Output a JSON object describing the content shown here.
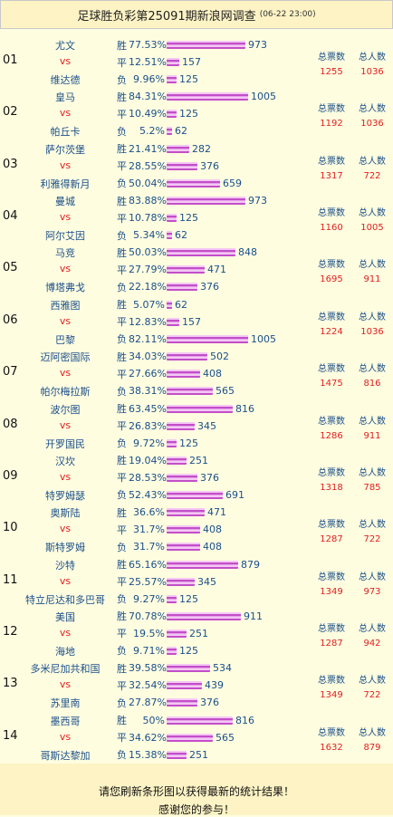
{
  "header": {
    "title": "足球胜负彩第25091期新浪网调查",
    "time": "(06-22 23:00)"
  },
  "labels": {
    "win": "胜",
    "draw": "平",
    "lose": "负",
    "vs": "vs",
    "total_votes": "总票数",
    "total_people": "总人数"
  },
  "matches": [
    {
      "num": "01",
      "home": "尤文",
      "away": "维达德",
      "win_pct": "77.53%",
      "win_count": "973",
      "draw_pct": "12.51%",
      "draw_count": "157",
      "lose_pct": "9.96%",
      "lose_count": "125",
      "total_votes": "1255",
      "total_people": "1036"
    },
    {
      "num": "02",
      "home": "皇马",
      "away": "帕丘卡",
      "win_pct": "84.31%",
      "win_count": "1005",
      "draw_pct": "10.49%",
      "draw_count": "125",
      "lose_pct": "5.2%",
      "lose_count": "62",
      "total_votes": "1192",
      "total_people": "1036"
    },
    {
      "num": "03",
      "home": "萨尔茨堡",
      "away": "利雅得新月",
      "win_pct": "21.41%",
      "win_count": "282",
      "draw_pct": "28.55%",
      "draw_count": "376",
      "lose_pct": "50.04%",
      "lose_count": "659",
      "total_votes": "1317",
      "total_people": "722"
    },
    {
      "num": "04",
      "home": "曼城",
      "away": "阿尔艾因",
      "win_pct": "83.88%",
      "win_count": "973",
      "draw_pct": "10.78%",
      "draw_count": "125",
      "lose_pct": "5.34%",
      "lose_count": "62",
      "total_votes": "1160",
      "total_people": "1005"
    },
    {
      "num": "05",
      "home": "马竞",
      "away": "博塔弗戈",
      "win_pct": "50.03%",
      "win_count": "848",
      "draw_pct": "27.79%",
      "draw_count": "471",
      "lose_pct": "22.18%",
      "lose_count": "376",
      "total_votes": "1695",
      "total_people": "911"
    },
    {
      "num": "06",
      "home": "西雅图",
      "away": "巴黎",
      "win_pct": "5.07%",
      "win_count": "62",
      "draw_pct": "12.83%",
      "draw_count": "157",
      "lose_pct": "82.11%",
      "lose_count": "1005",
      "total_votes": "1224",
      "total_people": "1036"
    },
    {
      "num": "07",
      "home": "迈阿密国际",
      "away": "帕尔梅拉斯",
      "win_pct": "34.03%",
      "win_count": "502",
      "draw_pct": "27.66%",
      "draw_count": "408",
      "lose_pct": "38.31%",
      "lose_count": "565",
      "total_votes": "1475",
      "total_people": "816"
    },
    {
      "num": "08",
      "home": "波尔图",
      "away": "开罗国民",
      "win_pct": "63.45%",
      "win_count": "816",
      "draw_pct": "26.83%",
      "draw_count": "345",
      "lose_pct": "9.72%",
      "lose_count": "125",
      "total_votes": "1286",
      "total_people": "911"
    },
    {
      "num": "09",
      "home": "汉坎",
      "away": "特罗姆瑟",
      "win_pct": "19.04%",
      "win_count": "251",
      "draw_pct": "28.53%",
      "draw_count": "376",
      "lose_pct": "52.43%",
      "lose_count": "691",
      "total_votes": "1318",
      "total_people": "785"
    },
    {
      "num": "10",
      "home": "奥斯陆",
      "away": "斯特罗姆",
      "win_pct": "36.6%",
      "win_count": "471",
      "draw_pct": "31.7%",
      "draw_count": "408",
      "lose_pct": "31.7%",
      "lose_count": "408",
      "total_votes": "1287",
      "total_people": "722"
    },
    {
      "num": "11",
      "home": "沙特",
      "away": "特立尼达和多巴哥",
      "win_pct": "65.16%",
      "win_count": "879",
      "draw_pct": "25.57%",
      "draw_count": "345",
      "lose_pct": "9.27%",
      "lose_count": "125",
      "total_votes": "1349",
      "total_people": "973"
    },
    {
      "num": "12",
      "home": "美国",
      "away": "海地",
      "win_pct": "70.78%",
      "win_count": "911",
      "draw_pct": "19.5%",
      "draw_count": "251",
      "lose_pct": "9.71%",
      "lose_count": "125",
      "total_votes": "1287",
      "total_people": "942"
    },
    {
      "num": "13",
      "home": "多米尼加共和国",
      "away": "苏里南",
      "win_pct": "39.58%",
      "win_count": "534",
      "draw_pct": "32.54%",
      "draw_count": "439",
      "lose_pct": "27.87%",
      "lose_count": "376",
      "total_votes": "1349",
      "total_people": "722"
    },
    {
      "num": "14",
      "home": "墨西哥",
      "away": "哥斯达黎加",
      "win_pct": "50%",
      "win_count": "816",
      "draw_pct": "34.62%",
      "draw_count": "565",
      "lose_pct": "15.38%",
      "lose_count": "251",
      "total_votes": "1632",
      "total_people": "879"
    }
  ],
  "footer": {
    "line1": "请您刷新条形图以获得最新的统计结果！",
    "line2": "感谢您的参与！"
  }
}
